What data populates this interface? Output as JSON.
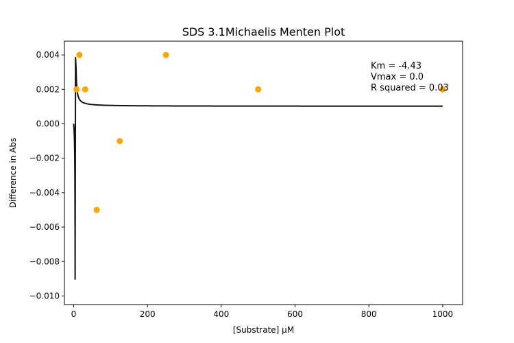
{
  "chart_data": {
    "type": "scatter",
    "title": "SDS 3.1Michaelis Menten Plot",
    "xlabel": "[Substrate] µM",
    "ylabel": "Difference in Abs",
    "xlim": [
      -25,
      1054
    ],
    "ylim": [
      -0.0105,
      0.0048
    ],
    "xticks": [
      0,
      200,
      400,
      600,
      800,
      1000
    ],
    "yticks": [
      -0.01,
      -0.008,
      -0.006,
      -0.004,
      -0.002,
      0.0,
      0.002,
      0.004,
      0.006
    ],
    "xtick_labels": [
      "0",
      "200",
      "400",
      "600",
      "800",
      "1000"
    ],
    "ytick_labels": [
      "−0.010",
      "−0.008",
      "−0.006",
      "−0.004",
      "−0.002",
      "0.000",
      "0.002",
      "0.004"
    ],
    "grid": false,
    "points": {
      "color": "#ffa500",
      "x": [
        7.8,
        15.6,
        31.25,
        62.5,
        125,
        250,
        500,
        1000
      ],
      "y": [
        0.002,
        0.004,
        0.002,
        -0.005,
        -0.001,
        0.004,
        0.002,
        0.002
      ]
    },
    "fit": {
      "color": "#111111",
      "km": -4.43,
      "vmax": 0.00102
    },
    "annotation": [
      "Km = -4.43",
      "Vmax = 0.0",
      "R squared = 0.03"
    ]
  }
}
